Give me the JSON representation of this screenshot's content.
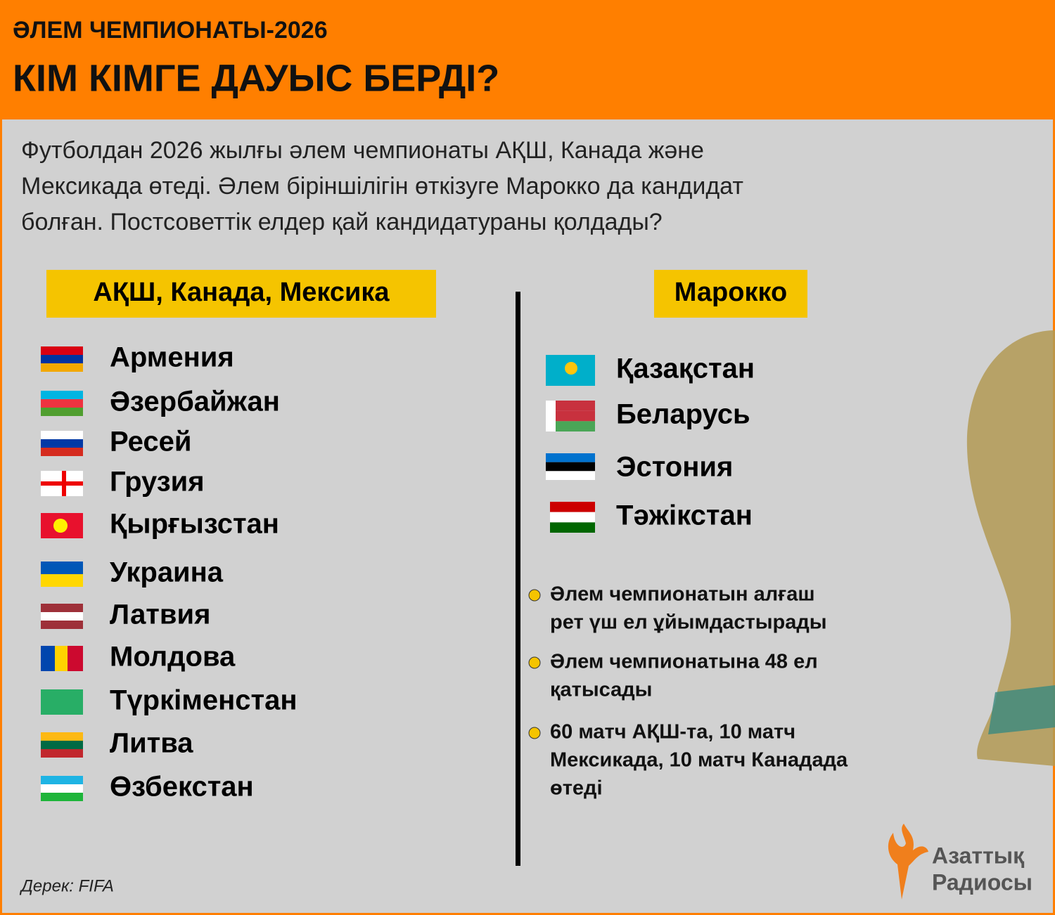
{
  "header": {
    "kicker": "ӘЛЕМ ЧЕМПИОНАТЫ-2026",
    "title": "КІМ КІМГЕ ДАУЫС БЕРДІ?"
  },
  "intro": [
    "Футболдан 2026 жылғы әлем чемпионаты АҚШ, Канада және",
    "Мексикада өтеді. Әлем біріншілігін өткізуге Марокко да кандидат",
    "болған. Постсоветтік елдер қай кандидатураны қолдады?"
  ],
  "left": {
    "heading": "АҚШ, Канада, Мексика",
    "countries": [
      "Армения",
      "Әзербайжан",
      "Ресей",
      "Грузия",
      "Қырғызстан",
      "Украина",
      "Латвия",
      "Молдова",
      "Түркіменстан",
      "Литва",
      "Өзбекстан"
    ]
  },
  "right": {
    "heading": "Марокко",
    "countries": [
      "Қазақстан",
      "Беларусь",
      "Эстония",
      "Тәжікстан"
    ]
  },
  "facts": [
    [
      "Әлем чемпионатын алғаш",
      "рет үш ел ұйымдастырады"
    ],
    [
      "Әлем чемпионатына 48 ел",
      "қатысады"
    ],
    [
      "60 матч АҚШ-та, 10 матч",
      "Мексикада, 10 матч Канадада",
      "өтеді"
    ]
  ],
  "source": "Дерек: FIFA",
  "logo": [
    "Азаттық",
    "Радиосы"
  ]
}
